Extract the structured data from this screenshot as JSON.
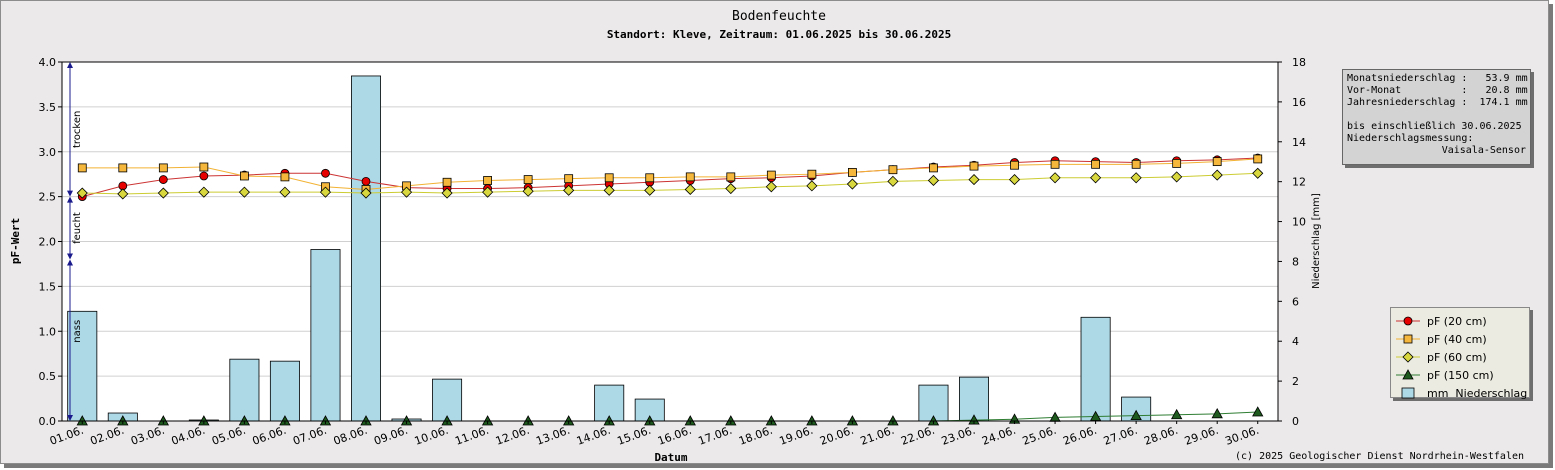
{
  "chart_data": {
    "type": "bar+line",
    "title": "Bodenfeuchte",
    "subtitle": "Standort: Kleve, Zeitraum: 01.06.2025 bis 30.06.2025",
    "xlabel": "Datum",
    "ylabel_left": "pF-Wert",
    "ylabel_right": "Niederschlag [mm]",
    "ylim_left": [
      0,
      4.0
    ],
    "ylim_right": [
      0,
      18
    ],
    "yticks_left": [
      "0.0",
      "0.5",
      "1.0",
      "1.5",
      "2.0",
      "2.5",
      "3.0",
      "3.5",
      "4.0"
    ],
    "yticks_right": [
      "0",
      "2",
      "4",
      "6",
      "8",
      "10",
      "12",
      "14",
      "16",
      "18"
    ],
    "grid": true,
    "legend_position": "bottom-right",
    "categories": [
      "01.06.",
      "02.06.",
      "03.06.",
      "04.06.",
      "05.06.",
      "06.06.",
      "07.06.",
      "08.06.",
      "09.06.",
      "10.06.",
      "11.06.",
      "12.06.",
      "13.06.",
      "14.06.",
      "15.06.",
      "16.06.",
      "17.06.",
      "18.06.",
      "19.06.",
      "20.06.",
      "21.06.",
      "22.06.",
      "23.06.",
      "24.06.",
      "25.06.",
      "26.06.",
      "27.06.",
      "28.06.",
      "29.06.",
      "30.06."
    ],
    "zones": [
      {
        "label": "trocken",
        "from": 2.5,
        "to": 4.0
      },
      {
        "label": "feucht",
        "from": 1.8,
        "to": 2.5
      },
      {
        "label": "nass",
        "from": 0.0,
        "to": 1.8
      }
    ],
    "bars": {
      "name": "mm  Niederschlag",
      "axis": "right",
      "color": "#add8e6",
      "values": [
        5.5,
        0.4,
        0.0,
        0.05,
        3.1,
        3.0,
        8.6,
        17.3,
        0.1,
        2.1,
        0.0,
        0.0,
        0.0,
        1.8,
        1.1,
        0.0,
        0.0,
        0.0,
        0.0,
        0.0,
        0.0,
        1.8,
        2.2,
        0.0,
        0.0,
        5.2,
        1.2,
        0.0,
        0.0,
        0.0
      ]
    },
    "series": [
      {
        "name": "pF (20 cm)",
        "marker": "circle",
        "line_color": "#cc3333",
        "marker_color": "#e60000",
        "values": [
          2.5,
          2.62,
          2.69,
          2.73,
          2.74,
          2.76,
          2.76,
          2.67,
          2.6,
          2.59,
          2.59,
          2.6,
          2.62,
          2.64,
          2.66,
          2.68,
          2.7,
          2.71,
          2.73,
          2.77,
          2.8,
          2.83,
          2.85,
          2.88,
          2.9,
          2.89,
          2.88,
          2.9,
          2.91,
          2.93
        ]
      },
      {
        "name": "pF (40 cm)",
        "marker": "square",
        "line_color": "#f2b233",
        "marker_color": "#f5b83d",
        "values": [
          2.82,
          2.82,
          2.82,
          2.83,
          2.73,
          2.72,
          2.61,
          2.58,
          2.62,
          2.66,
          2.68,
          2.69,
          2.7,
          2.71,
          2.71,
          2.72,
          2.72,
          2.74,
          2.75,
          2.77,
          2.8,
          2.82,
          2.84,
          2.85,
          2.86,
          2.86,
          2.86,
          2.87,
          2.89,
          2.92
        ]
      },
      {
        "name": "pF (60 cm)",
        "marker": "diamond",
        "line_color": "#cccc33",
        "marker_color": "#d8d83e",
        "values": [
          2.54,
          2.53,
          2.54,
          2.55,
          2.55,
          2.55,
          2.55,
          2.54,
          2.55,
          2.54,
          2.55,
          2.56,
          2.57,
          2.57,
          2.57,
          2.58,
          2.59,
          2.61,
          2.62,
          2.64,
          2.67,
          2.68,
          2.69,
          2.69,
          2.71,
          2.71,
          2.71,
          2.72,
          2.74,
          2.76
        ]
      },
      {
        "name": "pF (150 cm)",
        "marker": "triangle",
        "line_color": "#2e7d32",
        "marker_color": "#1e5a1e",
        "values": [
          0.0,
          0.0,
          0.0,
          0.0,
          0.0,
          0.0,
          0.0,
          0.0,
          0.0,
          0.0,
          0.0,
          0.0,
          0.0,
          0.0,
          0.0,
          0.0,
          0.0,
          0.0,
          0.0,
          0.0,
          0.0,
          0.0,
          0.01,
          0.02,
          0.04,
          0.05,
          0.06,
          0.07,
          0.08,
          0.1
        ]
      }
    ]
  },
  "infobox": {
    "line1": "Monatsniederschlag :   53.9 mm",
    "line2": "Vor-Monat          :   20.8 mm",
    "line3": "Jahresniederschlag :  174.1 mm",
    "line4": "bis einschließlich 30.06.2025",
    "line5": "Niederschlagsmessung:",
    "line6": "Vaisala-Sensor"
  },
  "copyright": "(c) 2025 Geologischer Dienst Nordrhein-Westfalen"
}
